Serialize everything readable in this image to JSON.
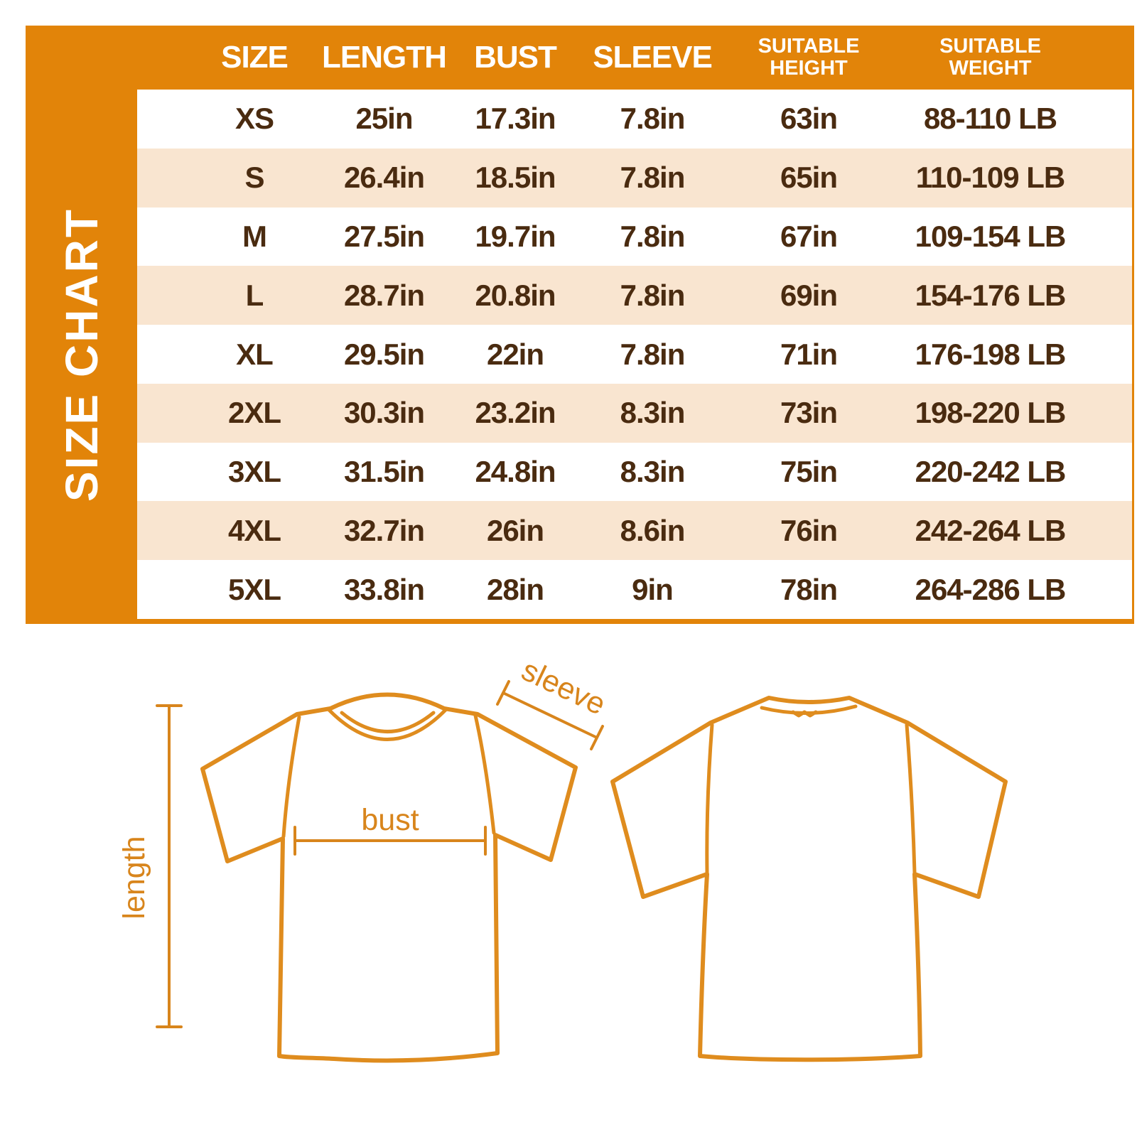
{
  "title": "SIZE CHART",
  "colors": {
    "orange": "#E28409",
    "beige": "#F9E5D0",
    "brown": "#4A2B10",
    "line_orange": "#DF8C1E",
    "label_orange": "#D8851C"
  },
  "chart_data": {
    "type": "table",
    "title": "SIZE CHART",
    "columns": [
      "SIZE",
      "LENGTH",
      "BUST",
      "SLEEVE",
      "SUITABLE\nHEIGHT",
      "SUITABLE\nWEIGHT"
    ],
    "rows": [
      [
        "XS",
        "25in",
        "17.3in",
        "7.8in",
        "63in",
        "88-110 LB"
      ],
      [
        "S",
        "26.4in",
        "18.5in",
        "7.8in",
        "65in",
        "110-109 LB"
      ],
      [
        "M",
        "27.5in",
        "19.7in",
        "7.8in",
        "67in",
        "109-154 LB"
      ],
      [
        "L",
        "28.7in",
        "20.8in",
        "7.8in",
        "69in",
        "154-176 LB"
      ],
      [
        "XL",
        "29.5in",
        "22in",
        "7.8in",
        "71in",
        "176-198 LB"
      ],
      [
        "2XL",
        "30.3in",
        "23.2in",
        "8.3in",
        "73in",
        "198-220 LB"
      ],
      [
        "3XL",
        "31.5in",
        "24.8in",
        "8.3in",
        "75in",
        "220-242 LB"
      ],
      [
        "4XL",
        "32.7in",
        "26in",
        "8.6in",
        "76in",
        "242-264 LB"
      ],
      [
        "5XL",
        "33.8in",
        "28in",
        "9in",
        "78in",
        "264-286 LB"
      ]
    ]
  },
  "diagram": {
    "length_label": "length",
    "bust_label": "bust",
    "sleeve_label": "sleeve"
  }
}
